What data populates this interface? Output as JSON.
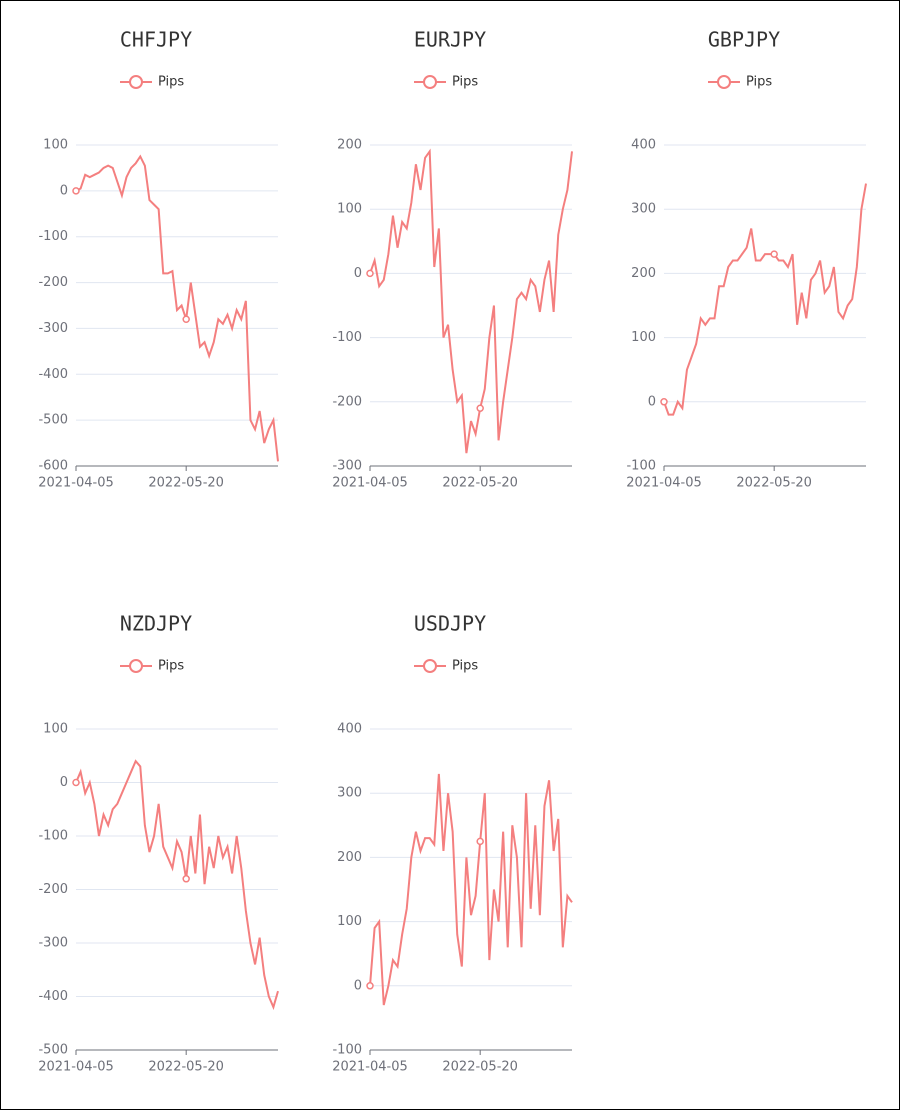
{
  "chart_data": [
    {
      "type": "line",
      "title": "CHFJPY",
      "categories": [
        "2021-04-05",
        null,
        null,
        null,
        null,
        null,
        null,
        null,
        null,
        null,
        null,
        null,
        null,
        null,
        null,
        null,
        null,
        null,
        null,
        null,
        null,
        null,
        null,
        null,
        "2022-05-20",
        null,
        null,
        null,
        null,
        null,
        null,
        null,
        null,
        null,
        null,
        null,
        null,
        null,
        null,
        null,
        null,
        null,
        null,
        null,
        null
      ],
      "series": [
        {
          "name": "Pips",
          "color": "#f47f7f",
          "values": [
            0,
            5,
            35,
            30,
            35,
            40,
            50,
            55,
            50,
            20,
            -10,
            30,
            50,
            60,
            75,
            55,
            -20,
            -30,
            -40,
            -180,
            -180,
            -175,
            -260,
            -250,
            -280,
            -200,
            -270,
            -340,
            -330,
            -360,
            -330,
            -280,
            -290,
            -270,
            -300,
            -260,
            -280,
            -240,
            -500,
            -520,
            -480,
            -550,
            -520,
            -500,
            -590
          ]
        }
      ],
      "ylim": [
        -600,
        100
      ],
      "yticks": [
        -600,
        -500,
        -400,
        -300,
        -200,
        -100,
        0,
        100
      ],
      "grid": true
    },
    {
      "type": "line",
      "title": "EURJPY",
      "categories": [
        "2021-04-05",
        null,
        null,
        null,
        null,
        null,
        null,
        null,
        null,
        null,
        null,
        null,
        null,
        null,
        null,
        null,
        null,
        null,
        null,
        null,
        null,
        null,
        null,
        null,
        "2022-05-20",
        null,
        null,
        null,
        null,
        null,
        null,
        null,
        null,
        null,
        null,
        null,
        null,
        null,
        null,
        null,
        null,
        null,
        null,
        null,
        null
      ],
      "series": [
        {
          "name": "Pips",
          "color": "#f47f7f",
          "values": [
            0,
            20,
            -20,
            -10,
            30,
            90,
            40,
            80,
            70,
            110,
            170,
            130,
            180,
            190,
            10,
            70,
            -100,
            -80,
            -150,
            -200,
            -190,
            -280,
            -230,
            -250,
            -210,
            -180,
            -100,
            -50,
            -260,
            -200,
            -150,
            -100,
            -40,
            -30,
            -40,
            -10,
            -20,
            -60,
            -10,
            20,
            -60,
            60,
            100,
            130,
            190
          ]
        }
      ],
      "ylim": [
        -300,
        200
      ],
      "yticks": [
        -300,
        -200,
        -100,
        0,
        100,
        200
      ],
      "grid": true
    },
    {
      "type": "line",
      "title": "GBPJPY",
      "categories": [
        "2021-04-05",
        null,
        null,
        null,
        null,
        null,
        null,
        null,
        null,
        null,
        null,
        null,
        null,
        null,
        null,
        null,
        null,
        null,
        null,
        null,
        null,
        null,
        null,
        null,
        "2022-05-20",
        null,
        null,
        null,
        null,
        null,
        null,
        null,
        null,
        null,
        null,
        null,
        null,
        null,
        null,
        null,
        null,
        null,
        null,
        null,
        null
      ],
      "series": [
        {
          "name": "Pips",
          "color": "#f47f7f",
          "values": [
            0,
            -20,
            -20,
            0,
            -10,
            50,
            70,
            90,
            130,
            120,
            130,
            130,
            180,
            180,
            210,
            220,
            220,
            230,
            240,
            270,
            220,
            220,
            230,
            230,
            230,
            220,
            220,
            210,
            230,
            120,
            170,
            130,
            190,
            200,
            220,
            170,
            180,
            210,
            140,
            130,
            150,
            160,
            210,
            300,
            340
          ]
        }
      ],
      "ylim": [
        -100,
        400
      ],
      "yticks": [
        -100,
        0,
        100,
        200,
        300,
        400
      ],
      "grid": true
    },
    {
      "type": "line",
      "title": "NZDJPY",
      "categories": [
        "2021-04-05",
        null,
        null,
        null,
        null,
        null,
        null,
        null,
        null,
        null,
        null,
        null,
        null,
        null,
        null,
        null,
        null,
        null,
        null,
        null,
        null,
        null,
        null,
        null,
        "2022-05-20",
        null,
        null,
        null,
        null,
        null,
        null,
        null,
        null,
        null,
        null,
        null,
        null,
        null,
        null,
        null,
        null,
        null,
        null,
        null,
        null
      ],
      "series": [
        {
          "name": "Pips",
          "color": "#f47f7f",
          "values": [
            0,
            20,
            -20,
            0,
            -40,
            -100,
            -60,
            -80,
            -50,
            -40,
            -20,
            0,
            20,
            40,
            30,
            -80,
            -130,
            -100,
            -40,
            -120,
            -140,
            -160,
            -110,
            -130,
            -180,
            -100,
            -170,
            -60,
            -190,
            -120,
            -160,
            -100,
            -140,
            -120,
            -170,
            -100,
            -160,
            -240,
            -300,
            -340,
            -290,
            -360,
            -400,
            -420,
            -390
          ]
        }
      ],
      "ylim": [
        -500,
        100
      ],
      "yticks": [
        -500,
        -400,
        -300,
        -200,
        -100,
        0,
        100
      ],
      "grid": true
    },
    {
      "type": "line",
      "title": "USDJPY",
      "categories": [
        "2021-04-05",
        null,
        null,
        null,
        null,
        null,
        null,
        null,
        null,
        null,
        null,
        null,
        null,
        null,
        null,
        null,
        null,
        null,
        null,
        null,
        null,
        null,
        null,
        null,
        "2022-05-20",
        null,
        null,
        null,
        null,
        null,
        null,
        null,
        null,
        null,
        null,
        null,
        null,
        null,
        null,
        null,
        null,
        null,
        null,
        null,
        null
      ],
      "series": [
        {
          "name": "Pips",
          "color": "#f47f7f",
          "values": [
            0,
            90,
            100,
            -30,
            0,
            40,
            30,
            80,
            120,
            200,
            240,
            210,
            230,
            230,
            220,
            330,
            210,
            300,
            240,
            80,
            30,
            200,
            110,
            140,
            225,
            300,
            40,
            150,
            100,
            240,
            60,
            250,
            200,
            60,
            300,
            120,
            250,
            110,
            280,
            320,
            210,
            260,
            60,
            140,
            130
          ]
        }
      ],
      "ylim": [
        -100,
        400
      ],
      "yticks": [
        -100,
        0,
        100,
        200,
        300,
        400
      ],
      "grid": true
    }
  ]
}
